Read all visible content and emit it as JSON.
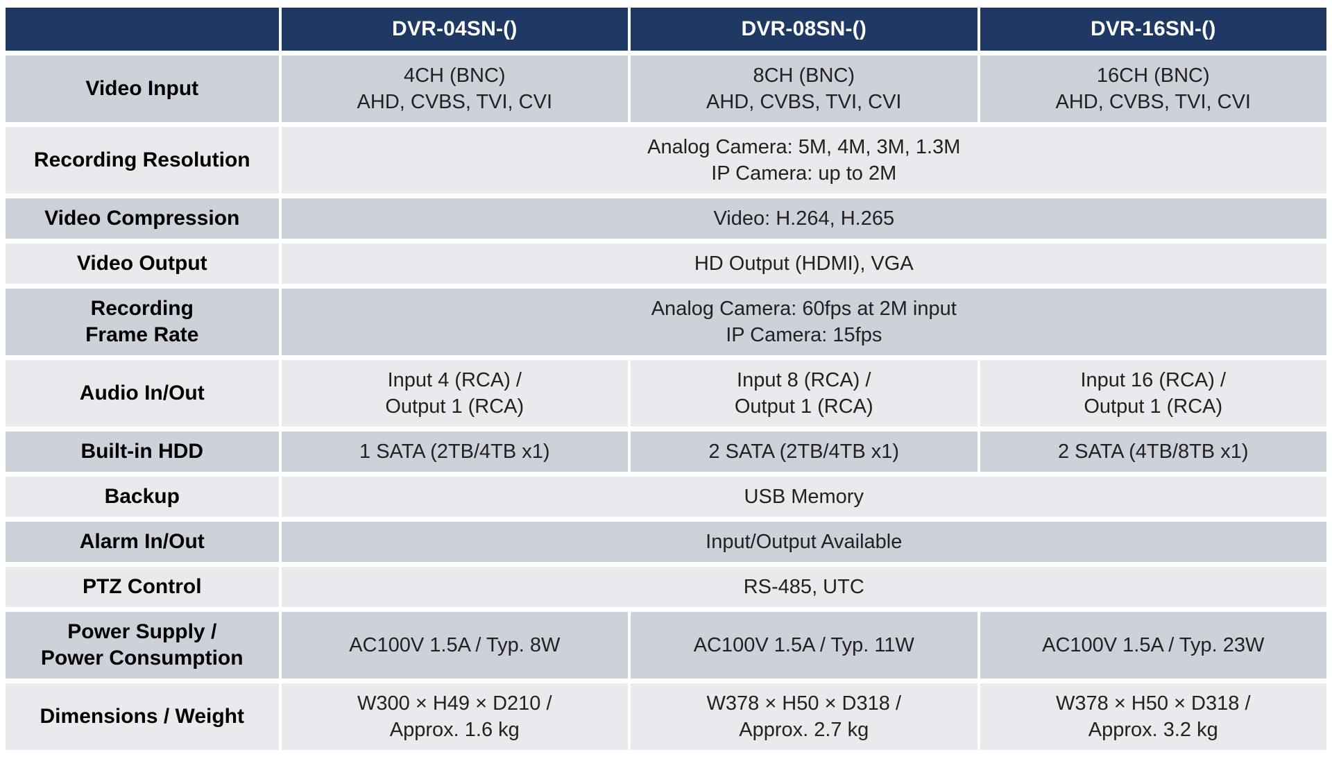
{
  "table": {
    "title": "DVR specification comparison table",
    "colors": {
      "header_bg": "#1f3864",
      "header_text": "#ffffff",
      "band_dark": "#cdd1d9",
      "band_light": "#e8eaee",
      "label_text": "#000000",
      "value_text": "#212121",
      "grid_gap": "#ffffff"
    },
    "header": {
      "corner": "",
      "columns": [
        "DVR-04SN-()",
        "DVR-08SN-()",
        "DVR-16SN-()"
      ]
    },
    "rows": [
      {
        "label": "Video Input",
        "values": [
          "4CH (BNC)\nAHD, CVBS, TVI, CVI",
          "8CH (BNC)\nAHD, CVBS, TVI, CVI",
          "16CH (BNC)\nAHD, CVBS, TVI, CVI"
        ]
      },
      {
        "label": "Recording Resolution",
        "span": "Analog Camera: 5M, 4M, 3M, 1.3M\nIP Camera: up to 2M"
      },
      {
        "label": "Video Compression",
        "span": "Video: H.264, H.265"
      },
      {
        "label": "Video Output",
        "span": "HD Output (HDMI), VGA"
      },
      {
        "label": "Recording\nFrame Rate",
        "span": "Analog Camera: 60fps at 2M input\nIP Camera: 15fps"
      },
      {
        "label": "Audio In/Out",
        "values": [
          "Input 4 (RCA) /\nOutput 1 (RCA)",
          "Input 8 (RCA) /\nOutput 1 (RCA)",
          "Input 16 (RCA) /\nOutput 1 (RCA)"
        ]
      },
      {
        "label": "Built-in HDD",
        "values": [
          "1 SATA (2TB/4TB x1)",
          "2 SATA (2TB/4TB x1)",
          "2 SATA (4TB/8TB x1)"
        ]
      },
      {
        "label": "Backup",
        "span": "USB Memory"
      },
      {
        "label": "Alarm In/Out",
        "span": "Input/Output Available"
      },
      {
        "label": "PTZ Control",
        "span": "RS-485, UTC"
      },
      {
        "label": "Power Supply /\nPower Consumption",
        "values": [
          "AC100V 1.5A / Typ. 8W",
          "AC100V 1.5A / Typ. 11W",
          "AC100V 1.5A / Typ. 23W"
        ]
      },
      {
        "label": "Dimensions / Weight",
        "values": [
          "W300 × H49 × D210 /\nApprox. 1.6 kg",
          "W378 × H50 × D318 /\nApprox. 2.7 kg",
          "W378 × H50 × D318 /\nApprox. 3.2 kg"
        ]
      }
    ]
  }
}
